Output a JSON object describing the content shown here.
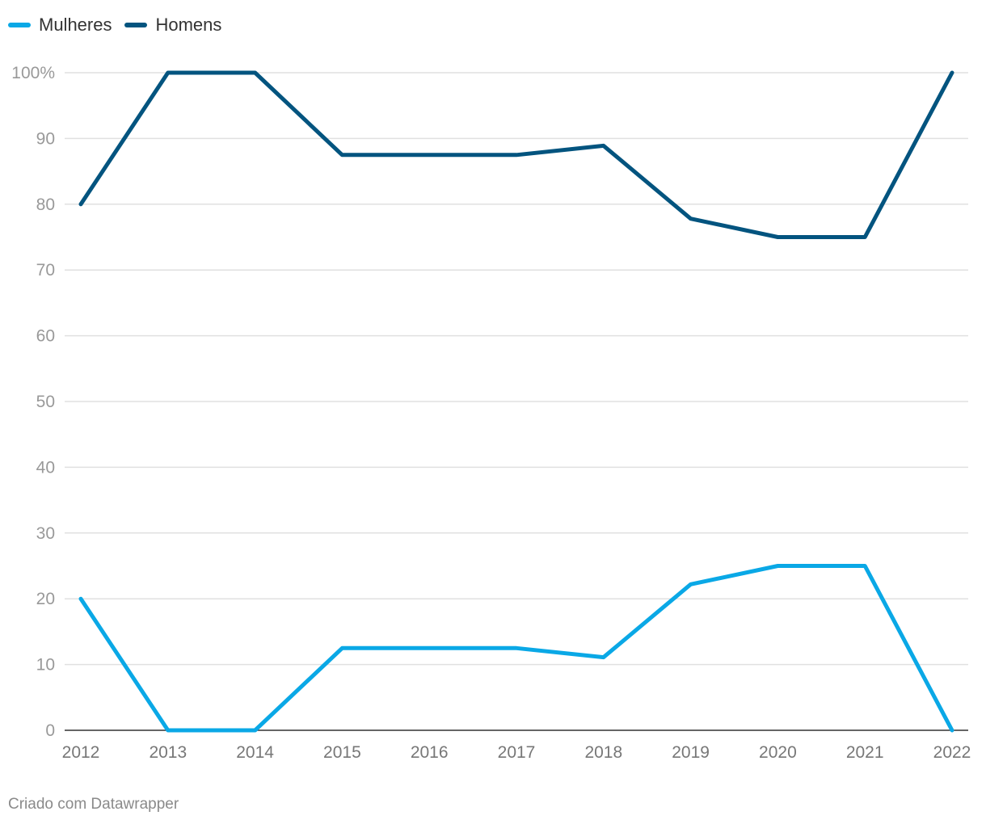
{
  "chart_data": {
    "type": "line",
    "x": [
      "2012",
      "2013",
      "2014",
      "2015",
      "2016",
      "2017",
      "2018",
      "2019",
      "2020",
      "2021",
      "2022"
    ],
    "series": [
      {
        "name": "Mulheres",
        "color": "#0aa8e6",
        "values": [
          20,
          0,
          0,
          12.5,
          12.5,
          12.5,
          11.1,
          22.2,
          25,
          25,
          0
        ]
      },
      {
        "name": "Homens",
        "color": "#03547f",
        "values": [
          80,
          100,
          100,
          87.5,
          87.5,
          87.5,
          88.9,
          77.8,
          75,
          75,
          100
        ]
      }
    ],
    "yticks": [
      "0",
      "10",
      "20",
      "30",
      "40",
      "50",
      "60",
      "70",
      "80",
      "90",
      "100%"
    ],
    "ylim": [
      0,
      100
    ],
    "grid": true,
    "legend_position": "top-left"
  },
  "footer": "Criado com Datawrapper"
}
